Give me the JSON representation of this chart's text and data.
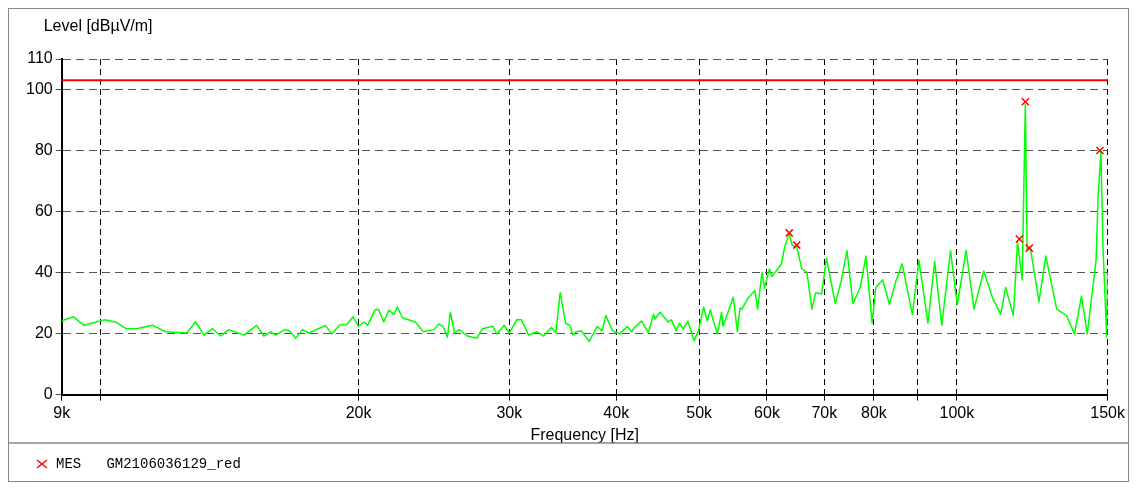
{
  "chart_data": {
    "type": "line",
    "xlabel": "Frequency [Hz]",
    "ylabel": "Level [dBµV/m]",
    "log": "x",
    "grid": true,
    "legend": "bottom",
    "xlim": [
      9000,
      150000
    ],
    "xticks": [
      {
        "value": 9000,
        "label": "9k"
      },
      {
        "value": 10000,
        "label": null
      },
      {
        "value": 20000,
        "label": "20k"
      },
      {
        "value": 30000,
        "label": "30k"
      },
      {
        "value": 40000,
        "label": "40k"
      },
      {
        "value": 50000,
        "label": "50k"
      },
      {
        "value": 60000,
        "label": "60k"
      },
      {
        "value": 70000,
        "label": "70k"
      },
      {
        "value": 80000,
        "label": "80k"
      },
      {
        "value": 90000,
        "label": null
      },
      {
        "value": 100000,
        "label": "100k"
      },
      {
        "value": 150000,
        "label": "150k"
      }
    ],
    "ylim": [
      0,
      110
    ],
    "yticks": [
      0,
      20,
      40,
      60,
      80,
      100,
      110
    ],
    "ref_lines": [
      {
        "axis": "y",
        "value": 103,
        "color": "#ff0000"
      }
    ],
    "series": [
      {
        "type": "line",
        "color": "#00ff00",
        "marker": "none",
        "x": [
          9000,
          9290,
          9560,
          10100,
          10400,
          10700,
          11000,
          11500,
          11900,
          12600,
          12900,
          13200,
          13500,
          13800,
          14100,
          14700,
          15200,
          15500,
          15800,
          16000,
          16400,
          16600,
          16900,
          17200,
          17500,
          18300,
          18600,
          19000,
          19400,
          19700,
          20000,
          20300,
          20500,
          20900,
          21100,
          21400,
          21700,
          22000,
          22200,
          22500,
          23300,
          23800,
          24500,
          24800,
          25100,
          25400,
          25600,
          25900,
          26200,
          26800,
          27500,
          27900,
          28700,
          29000,
          29600,
          30000,
          30600,
          31000,
          31600,
          32300,
          32900,
          33600,
          34000,
          34400,
          34900,
          35300,
          35600,
          35900,
          36400,
          37200,
          38000,
          38500,
          38900,
          39600,
          40400,
          41200,
          41700,
          42000,
          42800,
          43600,
          44200,
          44400,
          45000,
          46000,
          46400,
          47000,
          47400,
          47900,
          48500,
          48900,
          49300,
          49900,
          50600,
          51100,
          51500,
          52500,
          53100,
          53300,
          54800,
          55400,
          55800,
          56100,
          57000,
          58100,
          58500,
          59200,
          59600,
          60400,
          60800,
          62400,
          62900,
          63700,
          64200,
          65000,
          65900,
          66800,
          67700,
          68400,
          69500,
          70400,
          72100,
          73300,
          74400,
          75600,
          77100,
          78300,
          79600,
          80400,
          81900,
          83400,
          84800,
          86300,
          88700,
          90300,
          92500,
          94200,
          96000,
          98300,
          100100,
          102500,
          104700,
          107500,
          110100,
          112500,
          114000,
          116400,
          117700,
          119200,
          120200,
          120800,
          121800,
          124700,
          127000,
          130800,
          134300,
          137200,
          139800,
          142000,
          145400,
          146200,
          147300,
          148100,
          149600,
          150000
        ],
        "values": [
          24.2,
          25.5,
          22.7,
          24.5,
          23.8,
          21.6,
          21.6,
          22.7,
          20.6,
          20.2,
          23.8,
          19.5,
          21.6,
          19.2,
          21.3,
          19.5,
          22.7,
          19.2,
          20.6,
          19.5,
          21.3,
          20.9,
          18.5,
          21.3,
          20.2,
          22.7,
          19.9,
          22.7,
          23.1,
          25.5,
          22.4,
          23.8,
          22.7,
          27.7,
          28.0,
          23.8,
          27.7,
          26.3,
          28.7,
          25.2,
          23.8,
          20.6,
          21.3,
          23.1,
          22.4,
          18.8,
          27.0,
          20.2,
          21.3,
          19.2,
          18.5,
          21.6,
          22.4,
          19.9,
          22.7,
          20.2,
          24.5,
          24.5,
          19.5,
          20.6,
          19.2,
          22.0,
          20.2,
          33.4,
          23.4,
          22.7,
          19.5,
          20.6,
          20.9,
          17.4,
          22.4,
          20.9,
          25.9,
          20.9,
          19.9,
          22.4,
          20.6,
          22.0,
          24.1,
          20.2,
          26.3,
          24.8,
          27.0,
          23.8,
          24.5,
          20.9,
          23.4,
          21.6,
          24.1,
          20.9,
          17.7,
          20.9,
          28.7,
          24.1,
          27.7,
          19.9,
          27.0,
          22.4,
          31.9,
          20.6,
          28.4,
          28.0,
          31.6,
          34.1,
          28.0,
          40.1,
          34.8,
          41.2,
          38.7,
          42.9,
          48.3,
          52.9,
          49.0,
          48.3,
          41.2,
          40.1,
          28.0,
          33.4,
          33.0,
          44.7,
          29.8,
          37.6,
          47.2,
          29.8,
          35.1,
          45.4,
          23.4,
          35.1,
          37.6,
          29.5,
          36.9,
          42.9,
          26.3,
          44.0,
          23.4,
          43.6,
          22.7,
          47.2,
          29.5,
          47.2,
          28.0,
          40.5,
          31.6,
          26.3,
          35.1,
          25.9,
          50.0,
          37.6,
          95.1,
          47.2,
          48.3,
          30.5,
          45.4,
          28.0,
          25.9,
          19.9,
          32.3,
          19.9,
          44.0,
          64.9,
          79.5,
          49.0,
          18.8,
          40.1
        ]
      },
      {
        "type": "scatter",
        "name": "MES   GM2106036129_red",
        "color": "#ff0000",
        "marker": "cross",
        "x": [
          63700,
          65000,
          118300,
          120200,
          121500,
          146900
        ],
        "values": [
          53,
          49,
          51,
          96,
          48,
          80
        ]
      }
    ]
  }
}
